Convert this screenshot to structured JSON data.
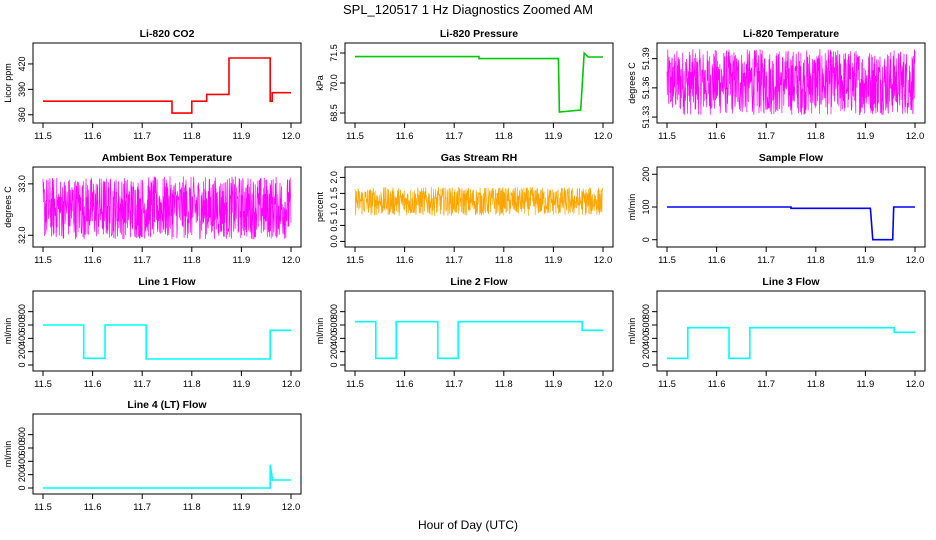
{
  "page": {
    "title": "SPL_120517  1 Hz Diagnostics Zoomed AM",
    "xlabel": "Hour of Day (UTC)"
  },
  "chart_data": [
    {
      "type": "line",
      "title": "Li-820 CO2",
      "ylabel": "Licor ppm",
      "color": "#ff0000",
      "xlim": [
        11.5,
        12.0
      ],
      "xticks": [
        "11.5",
        "11.6",
        "11.7",
        "11.8",
        "11.9",
        "12.0"
      ],
      "ylim": [
        355,
        440
      ],
      "yticks": [
        360,
        390,
        420
      ],
      "series": [
        {
          "x": [
            11.5,
            11.76,
            11.76,
            11.8,
            11.8,
            11.83,
            11.83,
            11.875,
            11.875,
            11.958,
            11.958,
            11.962,
            11.962,
            12.0
          ],
          "y": [
            376,
            376,
            362,
            362,
            376,
            376,
            384,
            384,
            427,
            427,
            376,
            376,
            386,
            386
          ]
        }
      ]
    },
    {
      "type": "line",
      "title": "Li-820 Pressure",
      "ylabel": "kPa",
      "color": "#00c800",
      "xlim": [
        11.5,
        12.0
      ],
      "xticks": [
        "11.5",
        "11.6",
        "11.7",
        "11.8",
        "11.9",
        "12.0"
      ],
      "ylim": [
        68.2,
        71.8
      ],
      "yticks": [
        68.5,
        70.0,
        71.5
      ],
      "ytick_labels": [
        "68.5",
        "70.0",
        "71.5"
      ],
      "series": [
        {
          "x": [
            11.5,
            11.75,
            11.75,
            11.91,
            11.912,
            11.955,
            11.962,
            11.97,
            12.0
          ],
          "y": [
            71.32,
            71.32,
            71.22,
            71.22,
            68.55,
            68.65,
            71.5,
            71.3,
            71.3
          ]
        }
      ]
    },
    {
      "type": "line",
      "title": "Li-820 Temperature",
      "ylabel": "degrees C",
      "color": "#ff00ff",
      "xlim": [
        11.5,
        12.0
      ],
      "xticks": [
        "11.5",
        "11.6",
        "11.7",
        "11.8",
        "11.9",
        "12.0"
      ],
      "ylim": [
        51.328,
        51.402
      ],
      "yticks": [
        51.33,
        51.36,
        51.39
      ],
      "ytick_labels": [
        "51.33",
        "51.36",
        "51.39"
      ],
      "series": [
        {
          "noise": true,
          "low": 51.332,
          "high": 51.4,
          "x_start": 11.5,
          "x_end": 12.0
        }
      ]
    },
    {
      "type": "line",
      "title": "Ambient Box Temperature",
      "ylabel": "degrees C",
      "color": "#ff00ff",
      "xlim": [
        11.5,
        12.0
      ],
      "xticks": [
        "11.5",
        "11.6",
        "11.7",
        "11.8",
        "11.9",
        "12.0"
      ],
      "ylim": [
        31.85,
        33.25
      ],
      "yticks": [
        32.0,
        33.0
      ],
      "ytick_labels": [
        "32.0",
        "33.0"
      ],
      "series": [
        {
          "noise": true,
          "low": 31.92,
          "high": 33.15,
          "x_start": 11.5,
          "x_end": 12.0
        }
      ]
    },
    {
      "type": "line",
      "title": "Gas Stream RH",
      "ylabel": "percent",
      "color": "#ffa500",
      "xlim": [
        11.5,
        12.0
      ],
      "xticks": [
        "11.5",
        "11.6",
        "11.7",
        "11.8",
        "11.9",
        "12.0"
      ],
      "ylim": [
        -0.05,
        2.2
      ],
      "yticks": [
        0.0,
        0.5,
        1.0,
        1.5,
        2.0
      ],
      "ytick_labels": [
        "0.0",
        "0.5",
        "1.0",
        "1.5",
        "2.0"
      ],
      "series": [
        {
          "noise": true,
          "low": 0.8,
          "high": 1.7,
          "x_start": 11.5,
          "x_end": 12.0
        }
      ]
    },
    {
      "type": "line",
      "title": "Sample Flow",
      "ylabel": "ml/min",
      "color": "#0000ff",
      "xlim": [
        11.5,
        12.0
      ],
      "xticks": [
        "11.5",
        "11.6",
        "11.7",
        "11.8",
        "11.9",
        "12.0"
      ],
      "ylim": [
        -10,
        210
      ],
      "yticks": [
        0,
        100,
        200
      ],
      "series": [
        {
          "x": [
            11.5,
            11.75,
            11.75,
            11.91,
            11.915,
            11.955,
            11.957,
            12.0
          ],
          "y": [
            100,
            100,
            96,
            96,
            0,
            0,
            100,
            100
          ]
        }
      ]
    },
    {
      "type": "line",
      "title": "Line 1 Flow",
      "ylabel": "ml/min",
      "color": "#00ffff",
      "xlim": [
        11.5,
        12.0
      ],
      "xticks": [
        "11.5",
        "11.6",
        "11.7",
        "11.8",
        "11.9",
        "12.0"
      ],
      "ylim": [
        -30,
        1050
      ],
      "yticks": [
        0,
        200,
        400,
        600,
        800
      ],
      "series": [
        {
          "x": [
            11.5,
            11.582,
            11.582,
            11.625,
            11.625,
            11.708,
            11.708,
            11.958,
            11.958,
            12.0
          ],
          "y": [
            600,
            600,
            100,
            100,
            600,
            600,
            90,
            90,
            520,
            520
          ]
        }
      ]
    },
    {
      "type": "line",
      "title": "Line 2 Flow",
      "ylabel": "ml/min",
      "color": "#00ffff",
      "xlim": [
        11.5,
        12.0
      ],
      "xticks": [
        "11.5",
        "11.6",
        "11.7",
        "11.8",
        "11.9",
        "12.0"
      ],
      "ylim": [
        -30,
        1050
      ],
      "yticks": [
        0,
        200,
        400,
        600,
        800
      ],
      "series": [
        {
          "x": [
            11.5,
            11.542,
            11.542,
            11.583,
            11.583,
            11.667,
            11.667,
            11.708,
            11.708,
            11.958,
            11.958,
            12.0
          ],
          "y": [
            650,
            650,
            100,
            100,
            650,
            650,
            100,
            100,
            650,
            650,
            520,
            520
          ]
        }
      ]
    },
    {
      "type": "line",
      "title": "Line 3 Flow",
      "ylabel": "ml/min",
      "color": "#00ffff",
      "xlim": [
        11.5,
        12.0
      ],
      "xticks": [
        "11.5",
        "11.6",
        "11.7",
        "11.8",
        "11.9",
        "12.0"
      ],
      "ylim": [
        -30,
        1050
      ],
      "yticks": [
        0,
        200,
        400,
        600,
        800
      ],
      "series": [
        {
          "x": [
            11.5,
            11.542,
            11.542,
            11.625,
            11.625,
            11.667,
            11.667,
            11.958,
            11.958,
            12.0
          ],
          "y": [
            100,
            100,
            560,
            560,
            100,
            100,
            560,
            560,
            490,
            490
          ]
        }
      ]
    },
    {
      "type": "line",
      "title": "Line 4 (LT) Flow",
      "ylabel": "ml/min",
      "color": "#00ffff",
      "xlim": [
        11.5,
        12.0
      ],
      "xticks": [
        "11.5",
        "11.6",
        "11.7",
        "11.8",
        "11.9",
        "12.0"
      ],
      "ylim": [
        -30,
        1050
      ],
      "yticks": [
        0,
        200,
        400,
        600,
        800
      ],
      "series": [
        {
          "x": [
            11.5,
            11.958,
            11.958,
            11.962,
            11.962,
            12.0
          ],
          "y": [
            0,
            0,
            350,
            150,
            120,
            120
          ]
        }
      ]
    }
  ]
}
